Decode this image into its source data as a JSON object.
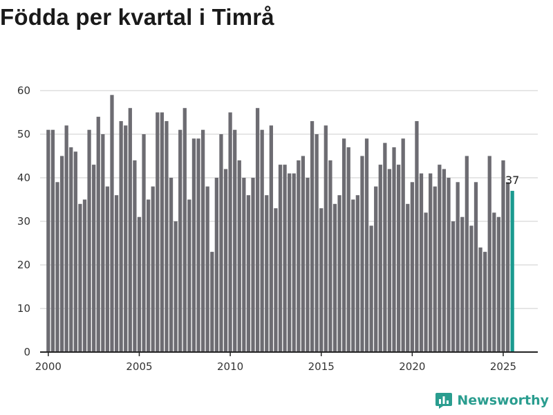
{
  "chart_data": {
    "type": "bar",
    "title": "Födda per kvartal i Timrå",
    "xlabel": "",
    "ylabel": "",
    "ylim": [
      0,
      60
    ],
    "yticks": [
      0,
      10,
      20,
      30,
      40,
      50,
      60
    ],
    "xticks": [
      2000,
      2005,
      2010,
      2015,
      2020,
      2025
    ],
    "xlim": [
      1999.55,
      2026.9
    ],
    "grid": true,
    "start_year": 2000,
    "values": [
      51,
      51,
      39,
      45,
      52,
      47,
      46,
      34,
      35,
      51,
      43,
      54,
      50,
      38,
      59,
      36,
      53,
      52,
      56,
      44,
      31,
      50,
      35,
      38,
      55,
      55,
      53,
      40,
      30,
      51,
      56,
      35,
      49,
      49,
      51,
      38,
      23,
      40,
      50,
      42,
      55,
      51,
      44,
      40,
      36,
      40,
      56,
      51,
      36,
      52,
      33,
      43,
      43,
      41,
      41,
      44,
      45,
      40,
      53,
      50,
      33,
      52,
      44,
      34,
      36,
      49,
      47,
      35,
      36,
      45,
      49,
      29,
      38,
      43,
      48,
      42,
      47,
      43,
      49,
      34,
      39,
      53,
      41,
      32,
      41,
      38,
      43,
      42,
      40,
      30,
      39,
      31,
      45,
      29,
      39,
      24,
      23,
      45,
      32,
      31,
      44,
      39,
      37
    ],
    "bar_color": "#6d6c72",
    "highlight_color": "#1a9a8f",
    "highlight_index": 102,
    "highlight_label": "37",
    "axis_color": "#222222",
    "grid_color": "#dedede"
  },
  "brand": {
    "name": "Newsworthy",
    "color": "#2a9d8f"
  }
}
